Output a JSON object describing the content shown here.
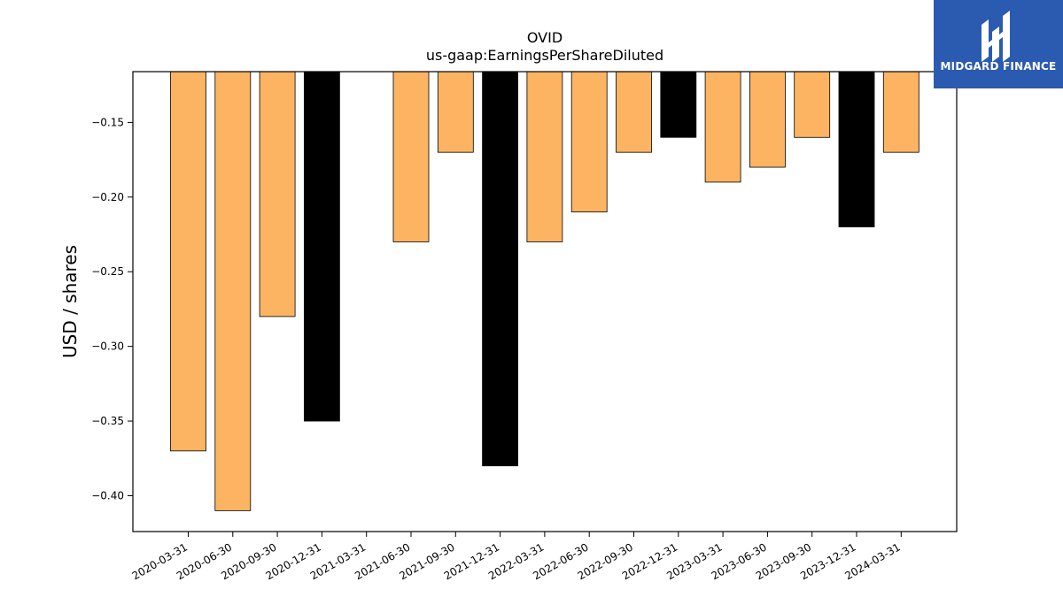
{
  "chart_data": {
    "type": "bar",
    "title": "OVID",
    "subtitle": "us-gaap:EarningsPerShareDiluted",
    "ylabel": "USD / shares",
    "xlabel": "",
    "ylim": [
      -0.424,
      -0.116
    ],
    "yticks": [
      -0.4,
      -0.35,
      -0.3,
      -0.25,
      -0.2,
      -0.15
    ],
    "ytick_labels": [
      "−0.40",
      "−0.35",
      "−0.30",
      "−0.25",
      "−0.20",
      "−0.15"
    ],
    "categories": [
      "2020-03-31",
      "2020-06-30",
      "2020-09-30",
      "2020-12-31",
      "2021-03-31",
      "2021-06-30",
      "2021-09-30",
      "2021-12-31",
      "2022-03-31",
      "2022-06-30",
      "2022-09-30",
      "2022-12-31",
      "2023-03-31",
      "2023-06-30",
      "2023-09-30",
      "2023-12-31",
      "2024-03-31"
    ],
    "values": [
      -0.37,
      -0.41,
      -0.28,
      -0.35,
      null,
      -0.23,
      -0.17,
      -0.38,
      -0.23,
      -0.21,
      -0.17,
      -0.16,
      -0.19,
      -0.18,
      -0.16,
      -0.22,
      -0.17
    ],
    "bar_colors": [
      "#fdb462",
      "#fdb462",
      "#fdb462",
      "#000000",
      "#fdb462",
      "#fdb462",
      "#fdb462",
      "#000000",
      "#fdb462",
      "#fdb462",
      "#fdb462",
      "#000000",
      "#fdb462",
      "#fdb462",
      "#fdb462",
      "#000000",
      "#fdb462"
    ],
    "grid": false,
    "legend": "none"
  },
  "logo": {
    "text": "MIDGARD FINANCE",
    "icon": "midgard-logo-icon",
    "background": "#2b5bb0"
  }
}
